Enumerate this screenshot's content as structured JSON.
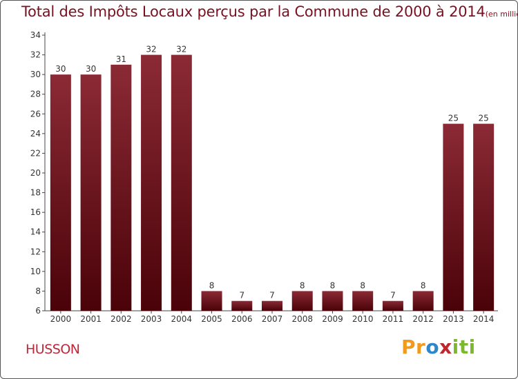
{
  "chart_data": {
    "type": "bar",
    "title": "Total des Impôts Locaux perçus par la Commune de 2000 à 2014",
    "title_unit": "(en milliers d'€)",
    "categories": [
      "2000",
      "2001",
      "2002",
      "2003",
      "2004",
      "2005",
      "2006",
      "2007",
      "2008",
      "2009",
      "2010",
      "2011",
      "2012",
      "2013",
      "2014"
    ],
    "values": [
      30,
      30,
      31,
      32,
      32,
      8,
      7,
      7,
      8,
      8,
      8,
      7,
      8,
      25,
      25
    ],
    "ylim": [
      6,
      34
    ],
    "yticks": [
      6,
      8,
      10,
      12,
      14,
      16,
      18,
      20,
      22,
      24,
      26,
      28,
      30,
      32,
      34
    ],
    "xlabel": "",
    "ylabel": "",
    "grid": false,
    "bar_color_top": "#8b2a35",
    "bar_color_bottom": "#4a0208"
  },
  "commune": "HUSSON",
  "logo": {
    "letters": [
      "P",
      "r",
      "o",
      "x",
      "i",
      "t",
      "i"
    ],
    "colors": [
      "#f29a1c",
      "#f29a1c",
      "#2f86c9",
      "#c0262d",
      "#7cb82f",
      "#7cb82f",
      "#7cb82f"
    ]
  },
  "colors": {
    "title": "#7a1020",
    "commune": "#c0263a",
    "axis": "#444444"
  }
}
